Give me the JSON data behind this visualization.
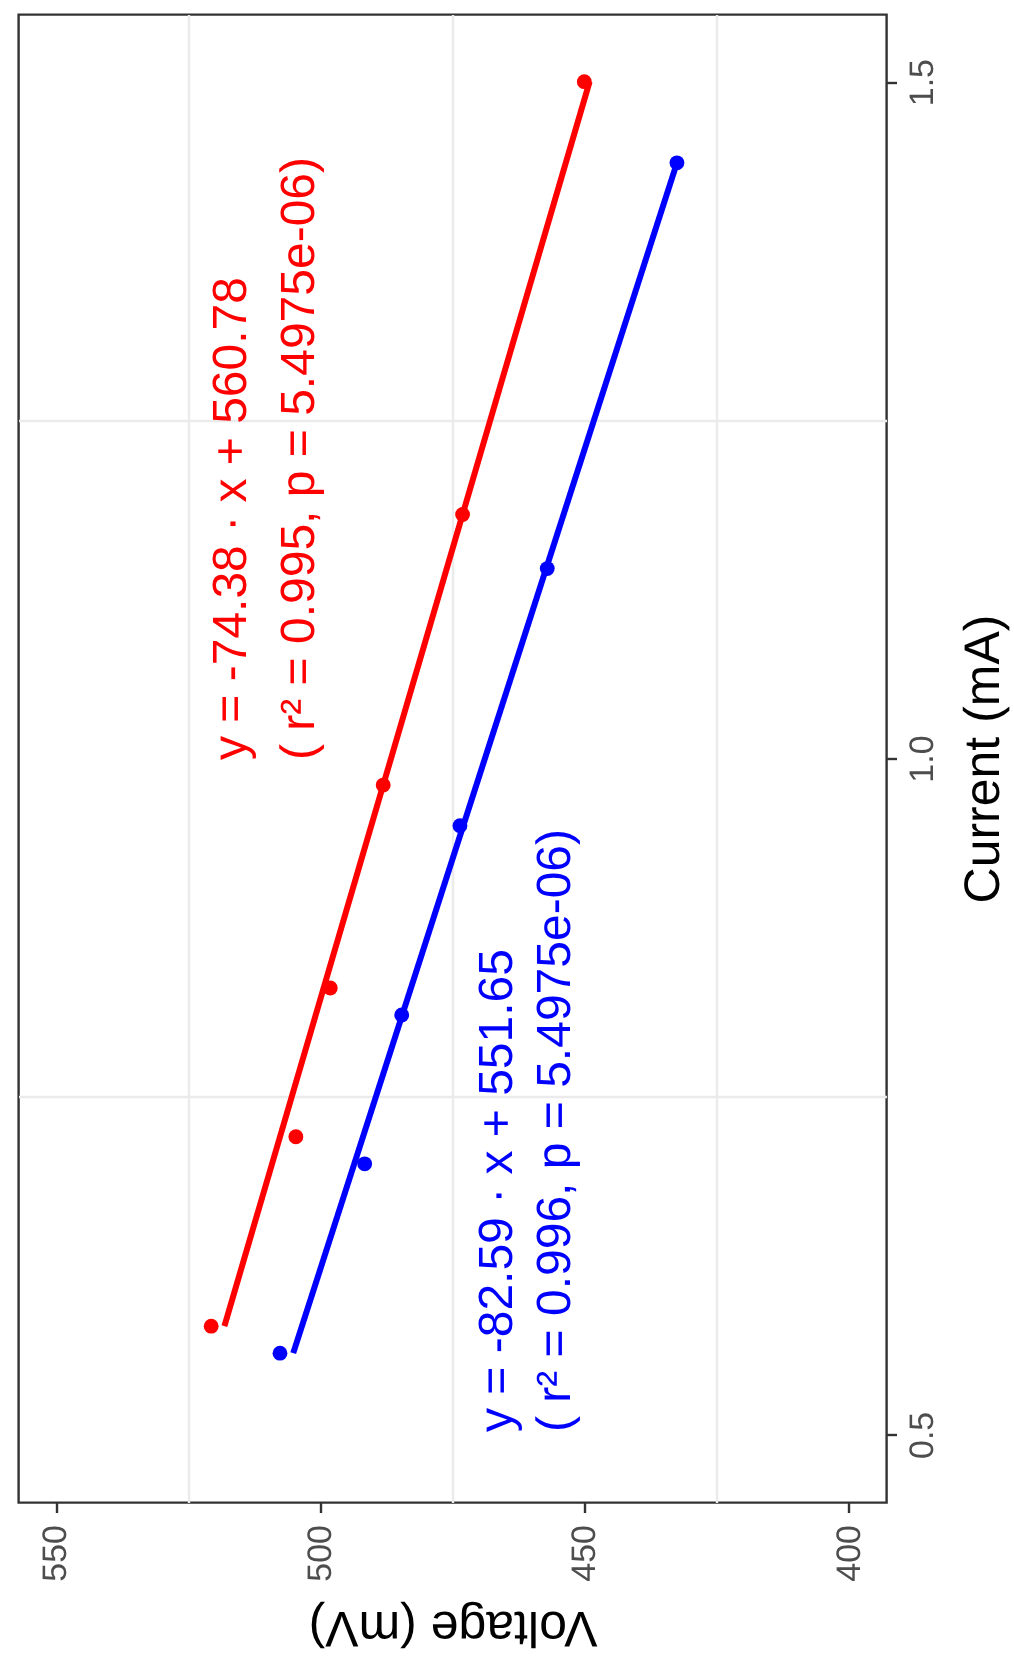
{
  "chart_data": {
    "type": "scatter",
    "xlabel": "Voltage (mV)",
    "ylabel": "Current (mA)",
    "xlim": [
      557,
      393
    ],
    "xticks": [
      550,
      500,
      450,
      400
    ],
    "ylim": [
      0.45,
      1.55
    ],
    "yticks": [
      0.5,
      {
        "value": 1,
        "label": "1.0"
      },
      1.5
    ],
    "grid": true,
    "line_style": "solid",
    "series": [
      {
        "color": "#ff0000",
        "marker": "circle",
        "x": [
          520.5,
          504.5,
          498,
          488,
          473,
          450
        ],
        "values": [
          0.58,
          0.72,
          0.83,
          0.98,
          1.18,
          1.5
        ]
      },
      {
        "type": "line",
        "color": "#ff0000",
        "marker": "none",
        "x": [
          518,
          449
        ],
        "values": [
          0.58,
          1.5
        ]
      },
      {
        "color": "#0000ff",
        "marker": "circle",
        "x": [
          507.5,
          491.5,
          484.5,
          473.5,
          457,
          432.5
        ],
        "values": [
          0.56,
          0.7,
          0.81,
          0.95,
          1.14,
          1.44
        ]
      },
      {
        "type": "line",
        "color": "#0000ff",
        "marker": "none",
        "x": [
          505,
          432.5
        ],
        "values": [
          0.56,
          1.44
        ]
      }
    ],
    "annotations": [
      "y = -74.38 · x + 560.78",
      "( r² = 0.995,  p = 5.4975e-06)",
      "y = -82.59 · x + 551.65",
      "( r² = 0.996,  p = 5.4975e-06)"
    ]
  }
}
